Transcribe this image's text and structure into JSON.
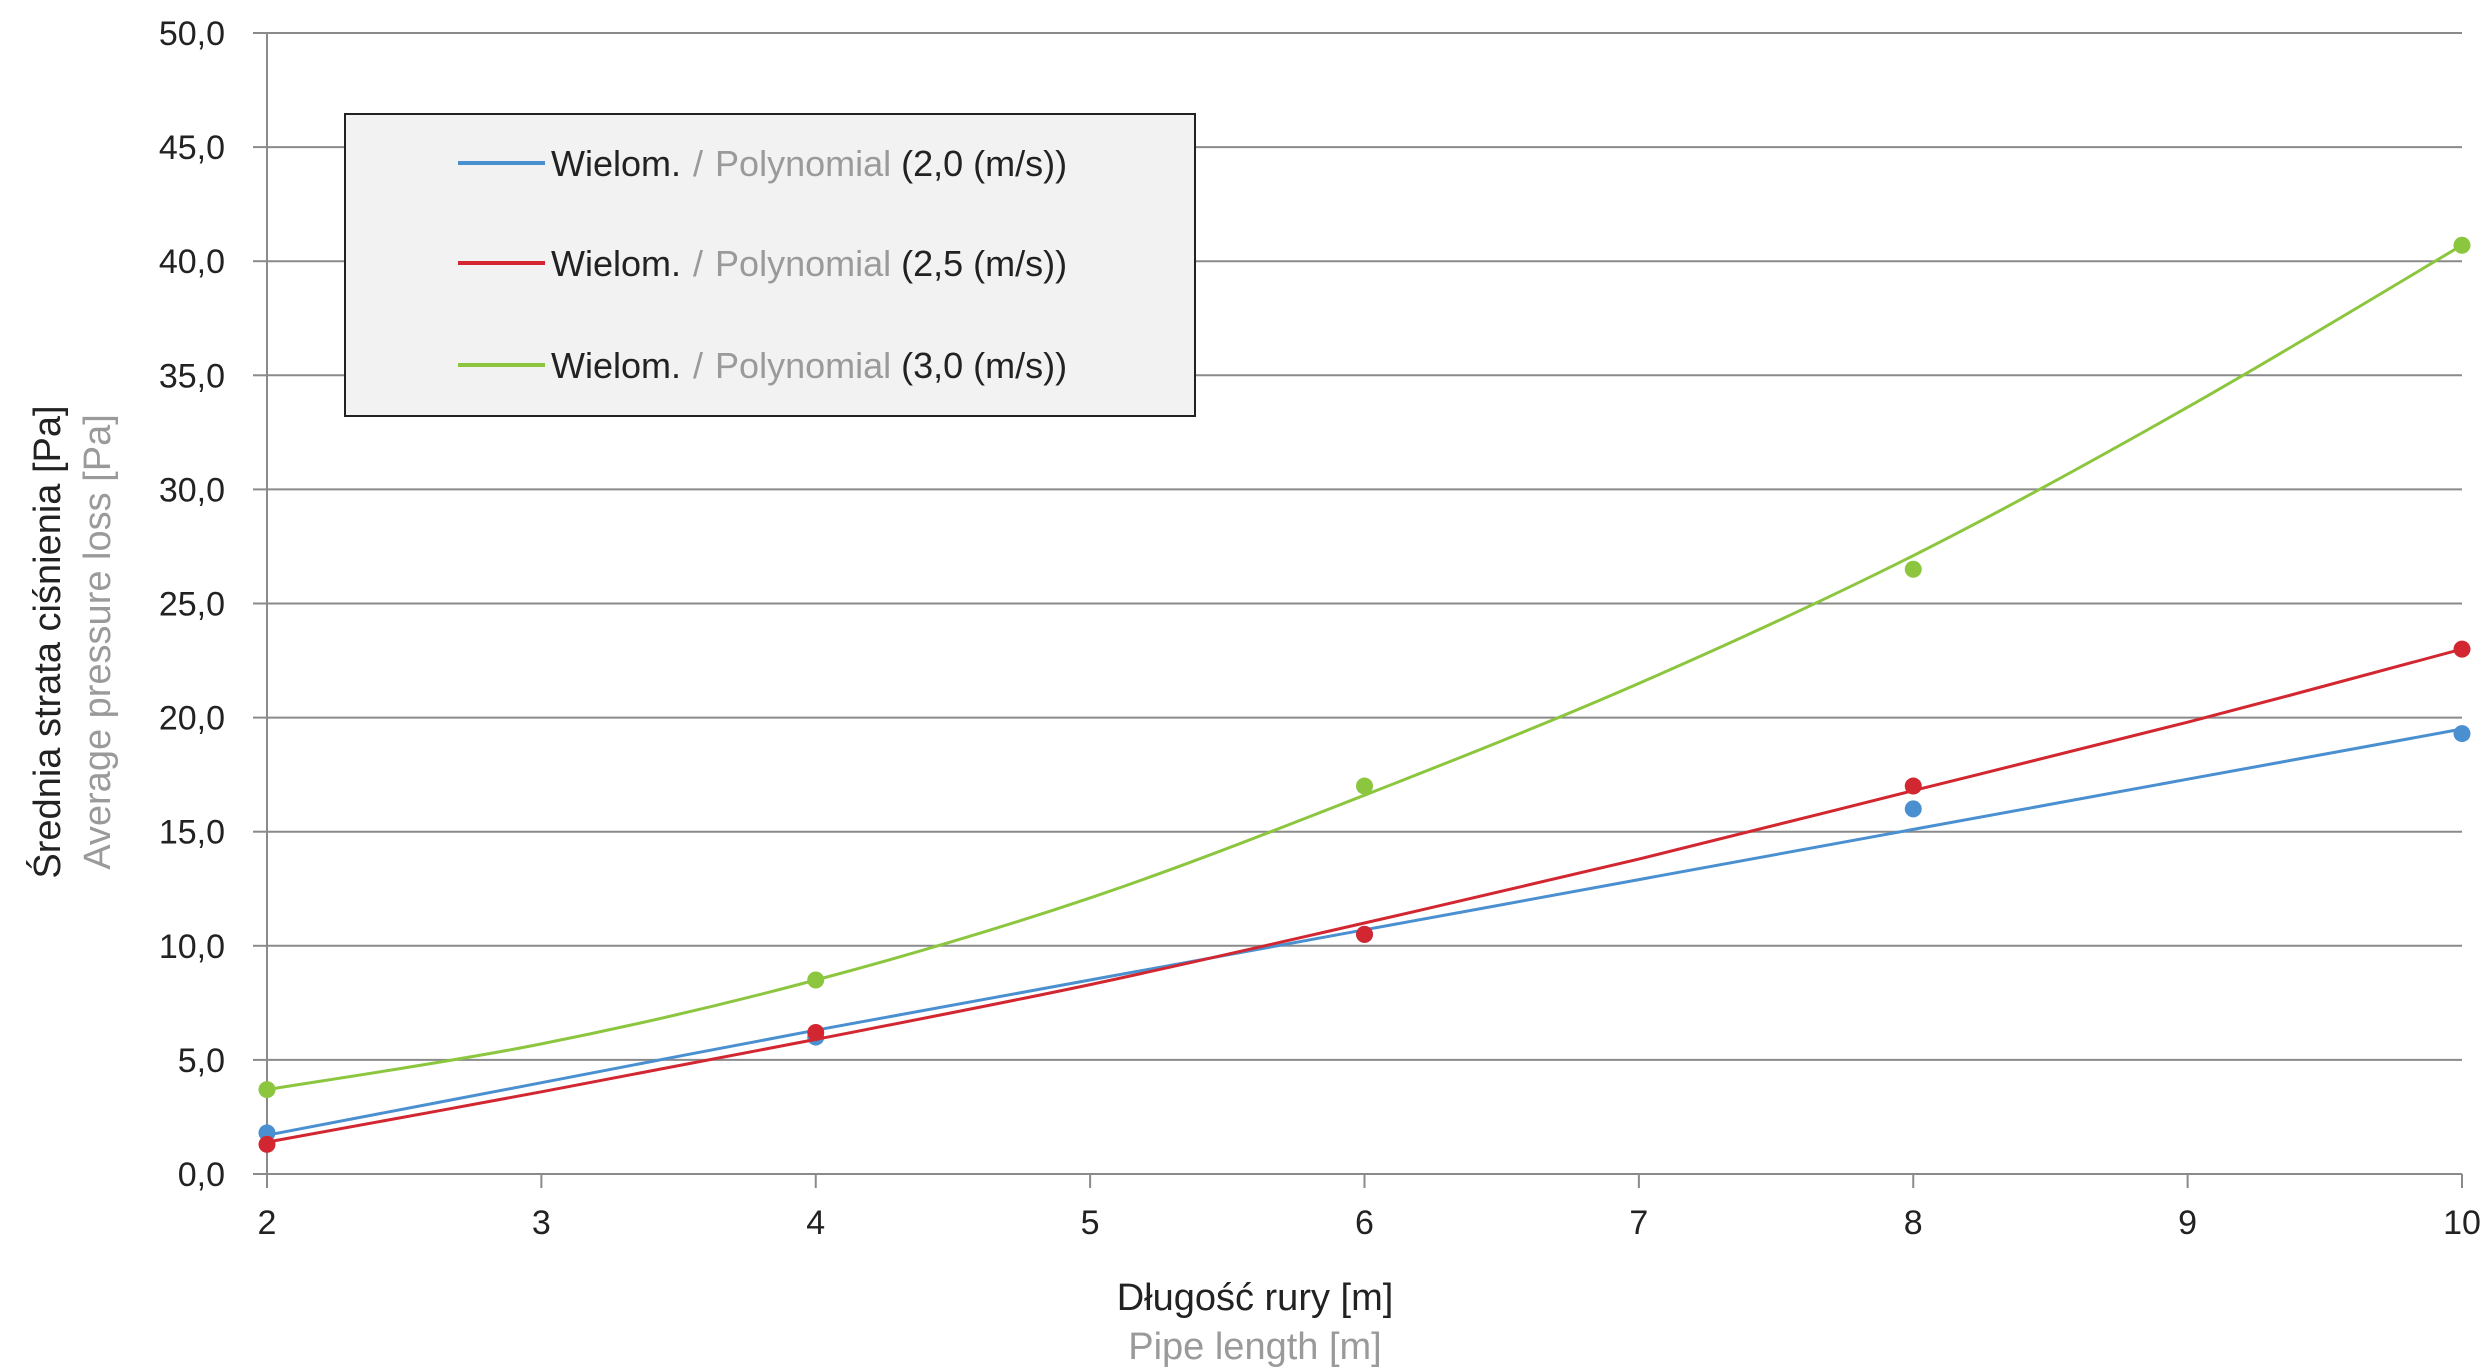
{
  "chart_data": {
    "type": "line",
    "x_axis": {
      "title": "Długość rury [m]",
      "subtitle": "Pipe length [m]",
      "min": 2,
      "max": 10,
      "ticks": [
        "2",
        "3",
        "4",
        "5",
        "6",
        "7",
        "8",
        "9",
        "10"
      ]
    },
    "y_axis": {
      "title": "Średnia strata ciśnienia [Pa]",
      "subtitle": "Average pressure loss [Pa]",
      "min": 0,
      "max": 50,
      "ticks": [
        "0,0",
        "5,0",
        "10,0",
        "15,0",
        "20,0",
        "25,0",
        "30,0",
        "35,0",
        "40,0",
        "45,0",
        "50,0"
      ]
    },
    "grid": "horizontal",
    "legend": {
      "placement": "top-left",
      "background": "#f2f2f2",
      "sep": "/"
    },
    "series": [
      {
        "name_main": "Wielom.",
        "name_sub": "Polynomial",
        "name_suffix": "(2,0 (m/s))",
        "color": "#4a90d0",
        "points": [
          [
            2,
            1.8
          ],
          [
            4,
            6.0
          ],
          [
            6,
            10.5
          ],
          [
            8,
            16.0
          ],
          [
            10,
            19.3
          ]
        ],
        "trend": [
          [
            2,
            1.7
          ],
          [
            3,
            4.0
          ],
          [
            4,
            6.3
          ],
          [
            5,
            8.5
          ],
          [
            6,
            10.7
          ],
          [
            7,
            12.9
          ],
          [
            8,
            15.1
          ],
          [
            9,
            17.3
          ],
          [
            10,
            19.5
          ]
        ]
      },
      {
        "name_main": "Wielom.",
        "name_sub": "Polynomial",
        "name_suffix": "(2,5 (m/s))",
        "color": "#d22730",
        "points": [
          [
            2,
            1.3
          ],
          [
            4,
            6.2
          ],
          [
            6,
            10.5
          ],
          [
            8,
            17.0
          ],
          [
            10,
            23.0
          ]
        ],
        "trend": [
          [
            2,
            1.4
          ],
          [
            3,
            3.6
          ],
          [
            4,
            5.9
          ],
          [
            5,
            8.3
          ],
          [
            6,
            11.0
          ],
          [
            7,
            13.8
          ],
          [
            8,
            16.8
          ],
          [
            9,
            19.8
          ],
          [
            10,
            23.0
          ]
        ]
      },
      {
        "name_main": "Wielom.",
        "name_sub": "Polynomial",
        "name_suffix": "(3,0 (m/s))",
        "color": "#8cc63f",
        "points": [
          [
            2,
            3.7
          ],
          [
            4,
            8.5
          ],
          [
            6,
            17.0
          ],
          [
            8,
            26.5
          ],
          [
            10,
            40.7
          ]
        ],
        "trend": [
          [
            2,
            3.7
          ],
          [
            3,
            5.7
          ],
          [
            4,
            8.5
          ],
          [
            5,
            12.1
          ],
          [
            6,
            16.6
          ],
          [
            7,
            21.5
          ],
          [
            8,
            27.1
          ],
          [
            9,
            33.6
          ],
          [
            10,
            40.7
          ]
        ]
      }
    ]
  }
}
